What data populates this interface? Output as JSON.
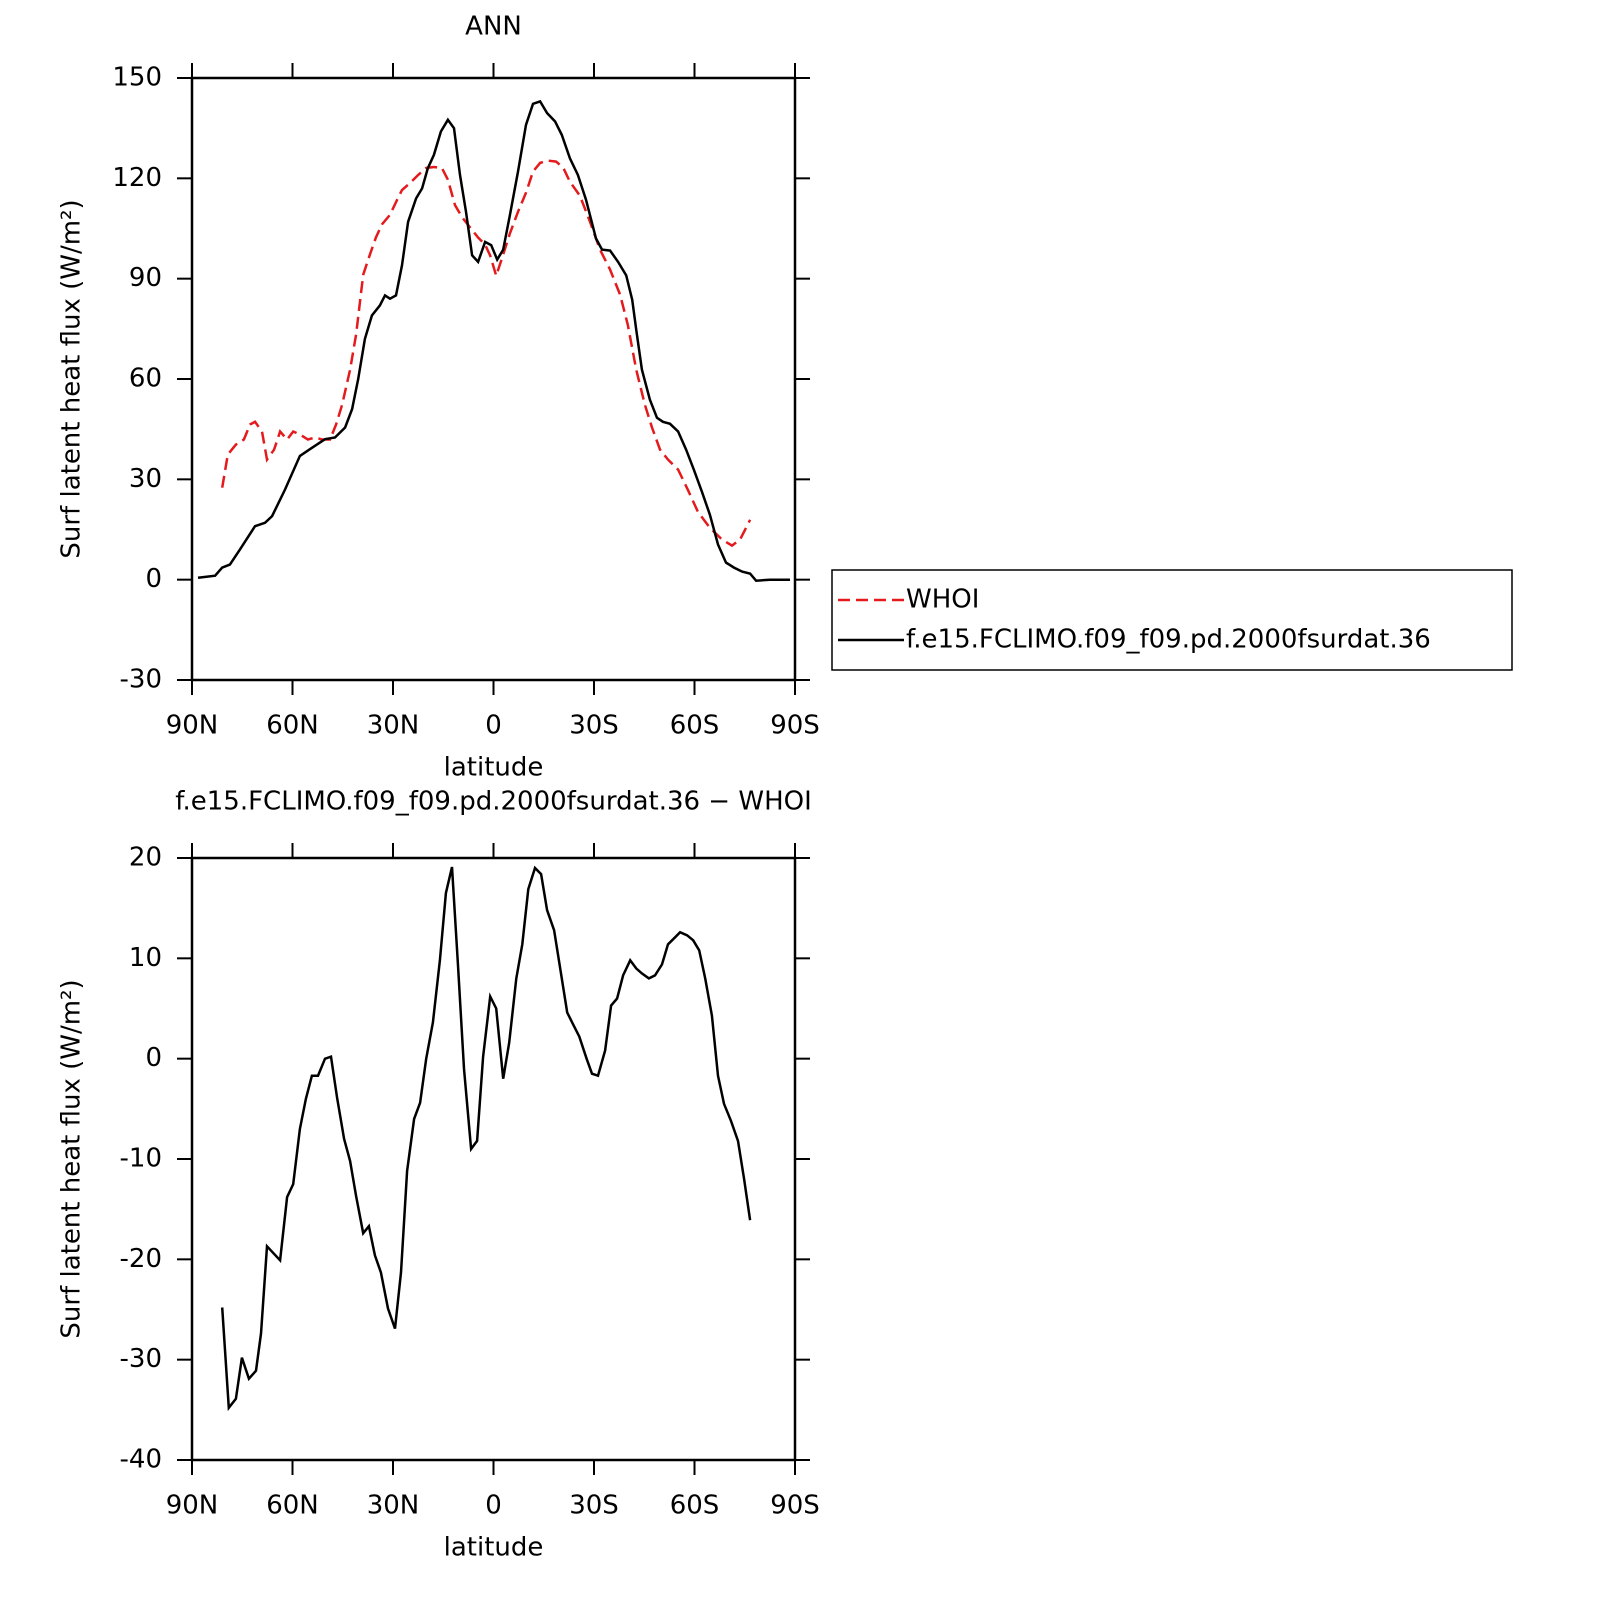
{
  "chart_data": [
    {
      "type": "line",
      "title": "ANN",
      "xlabel": "latitude",
      "ylabel": "Surf latent heat flux (W/m²)",
      "xlim": [
        90,
        -90
      ],
      "xticks": [
        {
          "value": 90,
          "label": "90N"
        },
        {
          "value": 60,
          "label": "60N"
        },
        {
          "value": 30,
          "label": "30N"
        },
        0,
        {
          "value": -30,
          "label": "30S"
        },
        {
          "value": -60,
          "label": "60S"
        },
        {
          "value": -90,
          "label": "90S"
        }
      ],
      "ylim": [
        -30,
        150
      ],
      "yticks": [
        -30,
        0,
        30,
        60,
        90,
        120,
        150
      ],
      "legend": "right",
      "series": [
        {
          "name": "WHOI",
          "color": "#e41a1c",
          "style": "dashed",
          "x": [
            81,
            79.3,
            76.9,
            74.5,
            72.7,
            71.2,
            69.1,
            67.6,
            65.5,
            63.7,
            61.6,
            59.8,
            57.8,
            55.4,
            53.3,
            51.2,
            48.8,
            47,
            45.2,
            42.8,
            41,
            38.9,
            36.9,
            35.1,
            33.3,
            30.9,
            29.1,
            27.3,
            24.9,
            22.5,
            20.1,
            17.8,
            15.4,
            13.6,
            11.5,
            9.4,
            7,
            4.6,
            2.5,
            1,
            -0.8,
            -2.6,
            -4.9,
            -7.3,
            -9.7,
            -11.8,
            -13.9,
            -16.3,
            -18.7,
            -20.8,
            -22.8,
            -25.8,
            -28.8,
            -31.8,
            -34.8,
            -37.8,
            -40.1,
            -42.6,
            -45.2,
            -47.3,
            -49.7,
            -52.1,
            -55.1,
            -58,
            -61,
            -64.6,
            -68.2,
            -71.2,
            -73.6,
            -76.6
          ],
          "values": [
            27.5,
            37.4,
            40.4,
            41.9,
            46.4,
            47.2,
            44.3,
            35.9,
            38.9,
            44.3,
            41.9,
            44.3,
            43.4,
            41.9,
            42.5,
            41.9,
            41.9,
            46.4,
            52.3,
            62.8,
            73.3,
            91.2,
            97.2,
            102.3,
            106.2,
            109.1,
            112.9,
            116.5,
            118.6,
            121,
            123.1,
            123.4,
            123.1,
            119.6,
            112,
            108.4,
            105.3,
            102.3,
            100.2,
            96.9,
            90.9,
            96.3,
            103.5,
            110,
            115.7,
            122,
            124.6,
            125.3,
            125,
            123.2,
            119,
            114.8,
            107,
            98.7,
            92.7,
            85.2,
            76.2,
            62.8,
            52.3,
            45.5,
            38.9,
            35.9,
            32.9,
            26.9,
            20.3,
            15.5,
            12,
            10.2,
            12,
            17.9
          ]
        },
        {
          "name": "f.e15.FCLIMO.f09_f09.pd.2000fsurdat.36",
          "color": "#000000",
          "style": "solid",
          "x": [
            88.2,
            83.1,
            81,
            78.7,
            75.7,
            71.2,
            68.2,
            66.1,
            62.2,
            57.8,
            54.8,
            50.3,
            47.3,
            44.3,
            42.2,
            40.4,
            38.4,
            36.3,
            33.9,
            32.4,
            30.9,
            29.1,
            27.3,
            25.5,
            23.1,
            21.3,
            19.6,
            17.8,
            15.7,
            13.6,
            11.8,
            10,
            8.2,
            6.4,
            4.6,
            2.5,
            0.7,
            -1.1,
            -2.9,
            -4.9,
            -7.3,
            -9.7,
            -11.8,
            -13.9,
            -16,
            -18.4,
            -20.4,
            -22.8,
            -25.2,
            -27.6,
            -30.6,
            -32.4,
            -34.8,
            -37.2,
            -39.6,
            -41.4,
            -42.6,
            -44.3,
            -46.7,
            -48.8,
            -50.6,
            -52.7,
            -55.1,
            -57.5,
            -59.8,
            -62.2,
            -64.6,
            -67,
            -69.4,
            -71.8,
            -74.2,
            -76.6,
            -78.4,
            -82.5,
            -88.5
          ],
          "values": [
            0.6,
            1.2,
            3.6,
            4.5,
            9,
            16,
            17,
            19,
            27,
            37,
            39,
            42,
            42.5,
            45.5,
            51,
            60,
            72,
            79,
            82,
            85,
            84,
            85,
            94,
            107,
            114,
            117,
            123,
            127,
            134,
            137.5,
            135,
            121,
            110,
            97,
            95,
            101,
            100,
            95.7,
            98.7,
            109,
            122,
            136,
            142.3,
            143,
            139.5,
            137,
            133,
            126,
            121,
            113.6,
            102,
            98.7,
            98.4,
            95,
            91,
            83.7,
            74.8,
            62.8,
            53.8,
            48.4,
            47.2,
            46.6,
            44.3,
            38.9,
            32.9,
            26.3,
            19.4,
            10.5,
            5.1,
            3.6,
            2.4,
            1.8,
            -0.3,
            0,
            0
          ]
        }
      ]
    },
    {
      "type": "line",
      "title": "f.e15.FCLIMO.f09_f09.pd.2000fsurdat.36 − WHOI",
      "xlabel": "latitude",
      "ylabel": "Surf latent heat flux (W/m²)",
      "xlim": [
        90,
        -90
      ],
      "xticks": [
        {
          "value": 90,
          "label": "90N"
        },
        {
          "value": 60,
          "label": "60N"
        },
        {
          "value": 30,
          "label": "30N"
        },
        0,
        {
          "value": -30,
          "label": "30S"
        },
        {
          "value": -60,
          "label": "60S"
        },
        {
          "value": -90,
          "label": "90S"
        }
      ],
      "ylim": [
        -40,
        20
      ],
      "yticks": [
        -40,
        -30,
        -20,
        -10,
        0,
        10,
        20
      ],
      "series": [
        {
          "color": "#000000",
          "style": "solid",
          "x": [
            81,
            79,
            76.9,
            75.1,
            73,
            70.9,
            69.4,
            67.6,
            63.7,
            61.6,
            59.8,
            57.8,
            56,
            54.2,
            52.4,
            50.3,
            48.5,
            46.7,
            44.6,
            42.8,
            41,
            38.9,
            37.2,
            35.4,
            33.6,
            31.5,
            29.4,
            27.6,
            25.8,
            23.7,
            21.9,
            20.1,
            18.1,
            16,
            14.2,
            12.4,
            10.6,
            8.8,
            6.7,
            4.9,
            3.1,
            1,
            -0.8,
            -2.9,
            -4.7,
            -6.8,
            -8.6,
            -10.4,
            -12.4,
            -14.2,
            -16,
            -18.1,
            -19.9,
            -22,
            -23.8,
            -25.6,
            -27.8,
            -29.4,
            -31.2,
            -33.3,
            -35.1,
            -36.9,
            -38.7,
            -40.8,
            -42.6,
            -44.3,
            -46.4,
            -48.2,
            -50.3,
            -52.1,
            -53.9,
            -55.7,
            -57.8,
            -59.6,
            -61.4,
            -63.2,
            -65.2,
            -67,
            -68.8,
            -70.9,
            -73,
            -74.8,
            -76.6
          ],
          "values": [
            -24.8,
            -34.8,
            -33.9,
            -29.8,
            -31.9,
            -31.1,
            -27.4,
            -18.7,
            -20.1,
            -13.8,
            -12.5,
            -7,
            -4,
            -1.7,
            -1.7,
            0,
            0.2,
            -3.9,
            -8,
            -10.2,
            -13.7,
            -17.4,
            -16.7,
            -19.6,
            -21.3,
            -24.9,
            -26.9,
            -21.3,
            -11.2,
            -6,
            -4.4,
            0,
            3.6,
            9.8,
            16.5,
            19.1,
            9.3,
            -1,
            -9,
            -8.2,
            0.2,
            6.2,
            5,
            -2,
            1.6,
            8,
            11.4,
            16.9,
            19,
            18.4,
            14.8,
            12.8,
            9,
            4.6,
            3.4,
            2.2,
            0,
            -1.5,
            -1.7,
            0.8,
            5.3,
            6,
            8.3,
            9.8,
            9,
            8.5,
            8,
            8.3,
            9.4,
            11.4,
            12,
            12.6,
            12.3,
            11.8,
            10.8,
            8,
            4.3,
            -1.7,
            -4.5,
            -6.2,
            -8.2,
            -12,
            -16.1
          ]
        }
      ]
    }
  ]
}
